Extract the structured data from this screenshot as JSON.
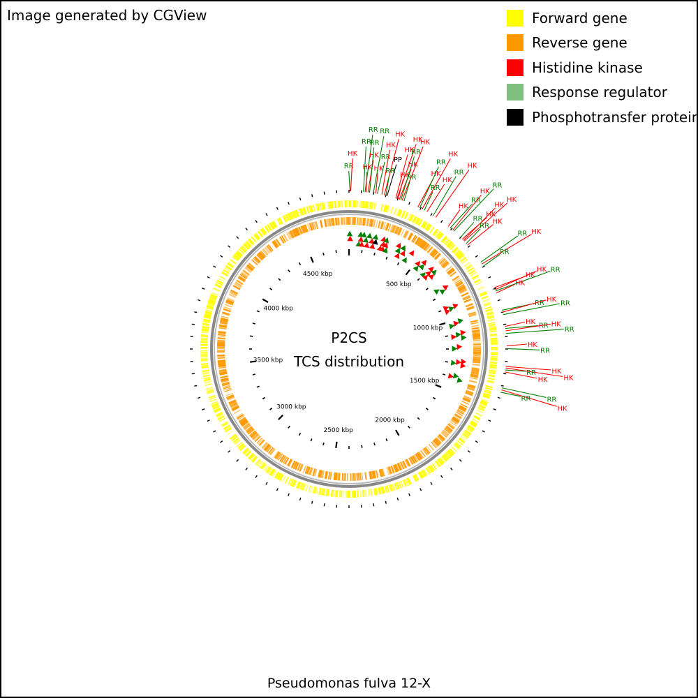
{
  "credit": "Image generated by CGView",
  "legend": [
    {
      "label": "Forward gene",
      "color": "#ffff00"
    },
    {
      "label": "Reverse gene",
      "color": "#ff9900"
    },
    {
      "label": "Histidine kinase",
      "color": "#ff0000"
    },
    {
      "label": "Response regulator",
      "color": "#7fbf7f"
    },
    {
      "label": "Phosphotransfer protein",
      "color": "#000000"
    }
  ],
  "center_title": [
    "P2CS",
    "TCS distribution"
  ],
  "organism": "Pseudomonas fulva 12-X",
  "genome_length_kbp": 4800,
  "axis_ticks": [
    {
      "label": "500 kbp",
      "kbp": 500
    },
    {
      "label": "1000 kbp",
      "kbp": 1000
    },
    {
      "label": "1500 kbp",
      "kbp": 1500
    },
    {
      "label": "2000 kbp",
      "kbp": 2000
    },
    {
      "label": "2500 kbp",
      "kbp": 2500
    },
    {
      "label": "3000 kbp",
      "kbp": 3000
    },
    {
      "label": "3500 kbp",
      "kbp": 3500
    },
    {
      "label": "4000 kbp",
      "kbp": 4000
    },
    {
      "label": "4500 kbp",
      "kbp": 4500
    }
  ],
  "colors": {
    "forward_gene": "#ffff00",
    "reverse_gene": "#ff9900",
    "hk": "#ff0000",
    "rr": "#008000",
    "pp": "#000000",
    "backbone": "#808080"
  },
  "tcs_features": [
    {
      "type": "RR",
      "kbp": 5
    },
    {
      "type": "HK",
      "kbp": 8
    },
    {
      "type": "RR",
      "kbp": 70
    },
    {
      "type": "RR",
      "kbp": 78
    },
    {
      "type": "HK",
      "kbp": 83
    },
    {
      "type": "HK",
      "kbp": 92
    },
    {
      "type": "RR",
      "kbp": 100
    },
    {
      "type": "RR",
      "kbp": 118
    },
    {
      "type": "HK",
      "kbp": 130
    },
    {
      "type": "RR",
      "kbp": 138
    },
    {
      "type": "HK",
      "kbp": 160
    },
    {
      "type": "HK",
      "kbp": 172
    },
    {
      "type": "RR",
      "kbp": 180
    },
    {
      "type": "PP",
      "kbp": 186
    },
    {
      "type": "HK",
      "kbp": 230
    },
    {
      "type": "HK",
      "kbp": 236
    },
    {
      "type": "HK",
      "kbp": 242
    },
    {
      "type": "HK",
      "kbp": 248
    },
    {
      "type": "RR",
      "kbp": 256
    },
    {
      "type": "HK",
      "kbp": 262
    },
    {
      "type": "RR",
      "kbp": 272
    },
    {
      "type": "HK",
      "kbp": 345
    },
    {
      "type": "RR",
      "kbp": 355
    },
    {
      "type": "HK",
      "kbp": 368
    },
    {
      "type": "RR",
      "kbp": 380
    },
    {
      "type": "HK",
      "kbp": 395
    },
    {
      "type": "RR",
      "kbp": 430
    },
    {
      "type": "HK",
      "kbp": 445
    },
    {
      "type": "HK",
      "kbp": 520
    },
    {
      "type": "RR",
      "kbp": 532
    },
    {
      "type": "HK",
      "kbp": 548
    },
    {
      "type": "RR",
      "kbp": 555
    },
    {
      "type": "RR",
      "kbp": 600
    },
    {
      "type": "HK",
      "kbp": 612
    },
    {
      "type": "HK",
      "kbp": 620
    },
    {
      "type": "HK",
      "kbp": 625
    },
    {
      "type": "RR",
      "kbp": 640
    },
    {
      "type": "HK",
      "kbp": 650
    },
    {
      "type": "RR",
      "kbp": 755
    },
    {
      "type": "HK",
      "kbp": 765
    },
    {
      "type": "RR",
      "kbp": 778
    },
    {
      "type": "HK",
      "kbp": 895
    },
    {
      "type": "HK",
      "kbp": 905
    },
    {
      "type": "RR",
      "kbp": 912
    },
    {
      "type": "HK",
      "kbp": 922
    },
    {
      "type": "RR",
      "kbp": 1010
    },
    {
      "type": "HK",
      "kbp": 1020
    },
    {
      "type": "RR",
      "kbp": 1032
    },
    {
      "type": "HK",
      "kbp": 1090
    },
    {
      "type": "RR",
      "kbp": 1100
    },
    {
      "type": "HK",
      "kbp": 1112
    },
    {
      "type": "RR",
      "kbp": 1124
    },
    {
      "type": "HK",
      "kbp": 1185
    },
    {
      "type": "RR",
      "kbp": 1198
    },
    {
      "type": "HK",
      "kbp": 1285
    },
    {
      "type": "HK",
      "kbp": 1292
    },
    {
      "type": "RR",
      "kbp": 1302
    },
    {
      "type": "HK",
      "kbp": 1312
    },
    {
      "type": "RR",
      "kbp": 1390
    },
    {
      "type": "HK",
      "kbp": 1400
    },
    {
      "type": "RR",
      "kbp": 1412
    }
  ]
}
